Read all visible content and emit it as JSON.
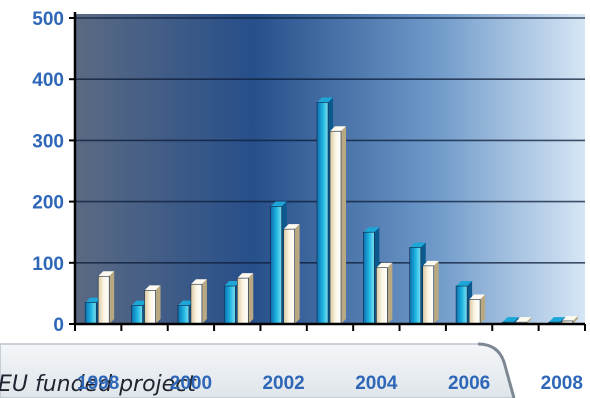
{
  "chart_data": {
    "type": "bar",
    "title": "",
    "xlabel": "",
    "ylabel": "",
    "ylim": [
      0,
      500
    ],
    "yticks": [
      0,
      100,
      200,
      300,
      400,
      500
    ],
    "x_tick_labels": [
      "1998",
      "2000",
      "2002",
      "2004",
      "2006",
      "2008"
    ],
    "categories": [
      "1998",
      "1999",
      "2000",
      "2001",
      "2002",
      "2003",
      "2004",
      "2005",
      "2006",
      "2007",
      "2008"
    ],
    "series": [
      {
        "values": [
          35,
          30,
          30,
          62,
          192,
          362,
          150,
          125,
          62,
          3,
          3
        ]
      },
      {
        "values": [
          78,
          55,
          65,
          75,
          155,
          315,
          92,
          95,
          40,
          3,
          5
        ]
      }
    ],
    "grid": true,
    "legend": "none",
    "colors": {
      "series1": "#1ca7d8",
      "series2": "#f7efd8",
      "plot_dark": "#254d86",
      "plot_light": "#d3e4f4",
      "tick_text": "#2f67b8"
    }
  },
  "caption": {
    "text": "EU funded project"
  }
}
